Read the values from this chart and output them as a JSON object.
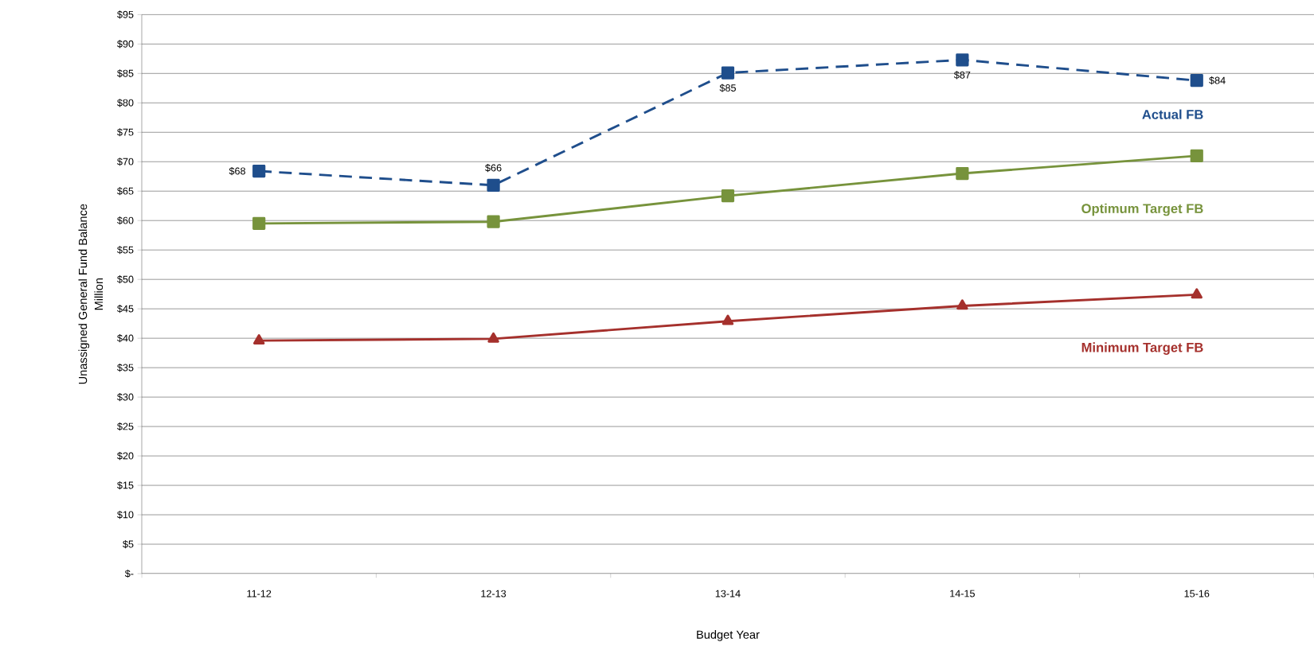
{
  "chart_data": {
    "type": "line",
    "xlabel": "Budget Year",
    "ylabel": "Unassigned General Fund Balance",
    "annotations": [
      "Million"
    ],
    "categories": [
      "11-12",
      "12-13",
      "13-14",
      "14-15",
      "15-16"
    ],
    "series": [
      {
        "name": "Actual  FB",
        "color": "#1f4e8c",
        "line_style": "dashed",
        "marker": "square",
        "values": [
          68.4,
          66.0,
          85.1,
          87.3,
          83.8
        ],
        "value_labels": [
          "$68",
          "$66",
          "$85",
          "$87",
          "$84"
        ]
      },
      {
        "name": "Optimum Target FB",
        "color": "#77933c",
        "line_style": "solid",
        "marker": "square",
        "values": [
          59.5,
          59.8,
          64.2,
          68.0,
          71.0
        ]
      },
      {
        "name": "Minimum Target FB",
        "color": "#a5302c",
        "line_style": "solid",
        "marker": "triangle",
        "values": [
          39.6,
          39.9,
          42.9,
          45.5,
          47.4
        ]
      }
    ],
    "ylim": [
      0,
      95
    ],
    "yticks": [
      {
        "value": 0,
        "label": "$-"
      },
      {
        "value": 5,
        "label": "$5"
      },
      {
        "value": 10,
        "label": "$10"
      },
      {
        "value": 15,
        "label": "$15"
      },
      {
        "value": 20,
        "label": "$20"
      },
      {
        "value": 25,
        "label": "$25"
      },
      {
        "value": 30,
        "label": "$30"
      },
      {
        "value": 35,
        "label": "$35"
      },
      {
        "value": 40,
        "label": "$40"
      },
      {
        "value": 45,
        "label": "$45"
      },
      {
        "value": 50,
        "label": "$50"
      },
      {
        "value": 55,
        "label": "$55"
      },
      {
        "value": 60,
        "label": "$60"
      },
      {
        "value": 65,
        "label": "$65"
      },
      {
        "value": 70,
        "label": "$70"
      },
      {
        "value": 75,
        "label": "$75"
      },
      {
        "value": 80,
        "label": "$80"
      },
      {
        "value": 85,
        "label": "$85"
      },
      {
        "value": 90,
        "label": "$90"
      },
      {
        "value": 95,
        "label": "$95"
      }
    ],
    "grid": "y"
  }
}
